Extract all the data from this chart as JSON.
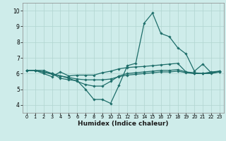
{
  "bg_color": "#ceecea",
  "grid_color": "#b0d4d0",
  "line_color": "#1e6e6a",
  "line_width": 0.9,
  "marker": "D",
  "marker_size": 1.8,
  "xlabel": "Humidex (Indice chaleur)",
  "xlabel_fontsize": 6.5,
  "tick_fontsize_y": 5.5,
  "tick_fontsize_x": 4.8,
  "xlim": [
    -0.5,
    23.5
  ],
  "ylim": [
    3.5,
    10.5
  ],
  "yticks": [
    4,
    5,
    6,
    7,
    8,
    9,
    10
  ],
  "xticks": [
    0,
    1,
    2,
    3,
    4,
    5,
    6,
    7,
    8,
    9,
    10,
    11,
    12,
    13,
    14,
    15,
    16,
    17,
    18,
    19,
    20,
    21,
    22,
    23
  ],
  "series": [
    [
      6.2,
      6.2,
      6.2,
      6.0,
      5.7,
      5.6,
      5.55,
      5.0,
      4.35,
      4.35,
      4.1,
      5.25,
      6.5,
      6.65,
      9.2,
      9.85,
      8.55,
      8.35,
      7.65,
      7.25,
      6.15,
      6.6,
      6.05,
      6.15
    ],
    [
      6.2,
      6.2,
      6.0,
      5.8,
      6.1,
      5.85,
      5.9,
      5.9,
      5.9,
      6.05,
      6.15,
      6.3,
      6.38,
      6.42,
      6.45,
      6.5,
      6.55,
      6.6,
      6.65,
      6.1,
      6.0,
      6.0,
      6.1,
      6.15
    ],
    [
      6.2,
      6.2,
      6.1,
      6.0,
      5.85,
      5.7,
      5.5,
      5.3,
      5.2,
      5.2,
      5.5,
      5.85,
      6.0,
      6.05,
      6.1,
      6.15,
      6.2,
      6.2,
      6.25,
      6.1,
      6.05,
      6.0,
      6.0,
      6.1
    ],
    [
      6.2,
      6.2,
      6.1,
      5.95,
      5.85,
      5.75,
      5.65,
      5.6,
      5.6,
      5.6,
      5.65,
      5.8,
      5.9,
      5.95,
      6.0,
      6.05,
      6.1,
      6.1,
      6.15,
      6.05,
      6.0,
      6.0,
      6.05,
      6.1
    ]
  ]
}
